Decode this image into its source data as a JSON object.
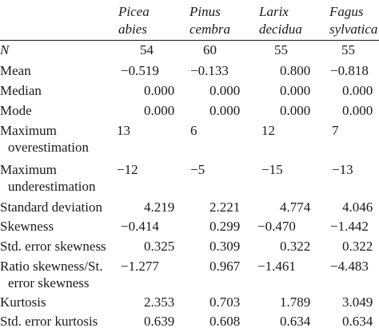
{
  "columns": [
    {
      "line1": "Picea",
      "line2": "abies"
    },
    {
      "line1": "Pinus",
      "line2": "cembra"
    },
    {
      "line1": "Larix",
      "line2": "decidua"
    },
    {
      "line1": "Fagus",
      "line2": "sylvatica"
    }
  ],
  "rows": [
    {
      "label": "N",
      "label2": "",
      "italic": true,
      "values": [
        "54",
        "60",
        "55",
        "55"
      ]
    },
    {
      "label": "Mean",
      "label2": "",
      "values": [
        "−0.519",
        "−0.133",
        "0.800",
        "−0.818"
      ]
    },
    {
      "label": "Median",
      "label2": "",
      "values": [
        "0.000",
        "0.000",
        "0.000",
        "0.000"
      ]
    },
    {
      "label": "Mode",
      "label2": "",
      "values": [
        "0.000",
        "0.000",
        "0.000",
        "0.000"
      ]
    },
    {
      "label": "Maximum",
      "label2": "overestimation",
      "values": [
        "13",
        "6",
        "12",
        "7"
      ]
    },
    {
      "label": "Maximum",
      "label2": "underestimation",
      "values": [
        "−12",
        "−5",
        "−15",
        "−13"
      ]
    },
    {
      "label": "Standard deviation",
      "label2": "",
      "values": [
        "4.219",
        "2.221",
        "4.774",
        "4.046"
      ]
    },
    {
      "label": "Skewness",
      "label2": "",
      "values": [
        "−0.414",
        "0.299",
        "−0.470",
        "−1.442"
      ]
    },
    {
      "label": "Std. error skewness",
      "label2": "",
      "values": [
        "0.325",
        "0.309",
        "0.322",
        "0.322"
      ]
    },
    {
      "label": "Ratio skewness/St.",
      "label2": "error skewness",
      "values": [
        "−1.277",
        "0.967",
        "−1.461",
        "−4.483"
      ]
    },
    {
      "label": "Kurtosis",
      "label2": "",
      "values": [
        "2.353",
        "0.703",
        "1.789",
        "3.049"
      ]
    },
    {
      "label": "Std. error kurtosis",
      "label2": "",
      "values": [
        "0.639",
        "0.608",
        "0.634",
        "0.634"
      ]
    }
  ]
}
